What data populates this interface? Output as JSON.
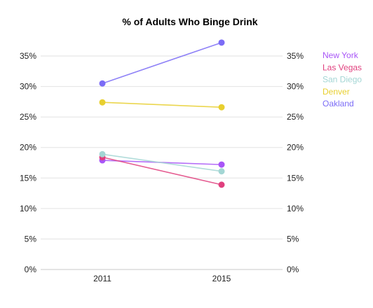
{
  "chart_data": {
    "type": "line",
    "title": "% of Adults Who Binge Drink",
    "xlabel": "",
    "ylabel": "",
    "categories": [
      "2011",
      "2015"
    ],
    "ylim": [
      0,
      35
    ],
    "yticks": [
      0,
      5,
      10,
      15,
      20,
      25,
      30,
      35
    ],
    "ytick_labels": [
      "0%",
      "5%",
      "10%",
      "15%",
      "20%",
      "25%",
      "30%",
      "35%"
    ],
    "grid": true,
    "legend_position": "top-right",
    "series": [
      {
        "name": "New York",
        "values": [
          17.9,
          17.2
        ],
        "color": "#a855f7"
      },
      {
        "name": "Las Vegas",
        "values": [
          18.4,
          13.9
        ],
        "color": "#e0407e"
      },
      {
        "name": "San Diego",
        "values": [
          18.9,
          16.1
        ],
        "color": "#a3d6d4"
      },
      {
        "name": "Denver",
        "values": [
          27.4,
          26.6
        ],
        "color": "#e8cf2f"
      },
      {
        "name": "Oakland",
        "values": [
          30.5,
          37.2
        ],
        "color": "#7b6cf6"
      }
    ]
  }
}
